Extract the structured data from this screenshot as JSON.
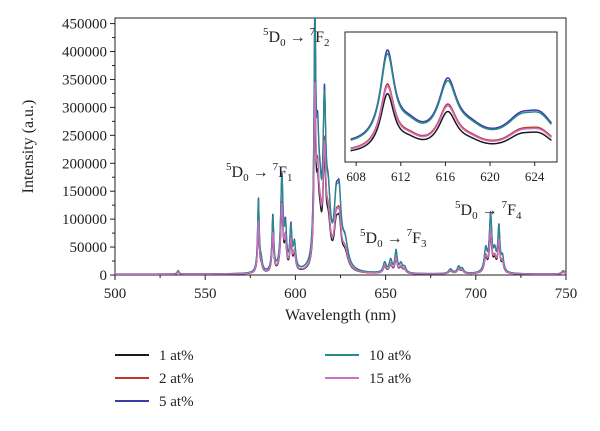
{
  "chart_data": {
    "type": "line",
    "xlabel": "Wavelength (nm)",
    "ylabel": "Intensity (a.u.)",
    "xlim": [
      500,
      750
    ],
    "ylim": [
      0,
      460000
    ],
    "xticks": [
      "500",
      "550",
      "600",
      "650",
      "700",
      "750"
    ],
    "yticks": [
      "0",
      "50000",
      "100000",
      "150000",
      "200000",
      "250000",
      "300000",
      "350000",
      "400000",
      "450000"
    ],
    "legend_position": "bottom",
    "annotations": [
      {
        "id": "f2",
        "sup1": "5",
        "base1": "D",
        "sub1": "0",
        "arrow": " → ",
        "sup2": "7",
        "base2": "F",
        "sub2": "2"
      },
      {
        "id": "f1",
        "sup1": "5",
        "base1": "D",
        "sub1": "0",
        "arrow": " → ",
        "sup2": "7",
        "base2": "F",
        "sub2": "1"
      },
      {
        "id": "f3",
        "sup1": "5",
        "base1": "D",
        "sub1": "0",
        "arrow": " → ",
        "sup2": "7",
        "base2": "F",
        "sub2": "3"
      },
      {
        "id": "f4",
        "sup1": "5",
        "base1": "D",
        "sub1": "0",
        "arrow": " → ",
        "sup2": "7",
        "base2": "F",
        "sub2": "4"
      }
    ],
    "series": [
      {
        "name": "1 at%",
        "color": "#1a1a1a",
        "scale": 0.64,
        "base": 1200
      },
      {
        "name": "2 at%",
        "color": "#c0392b",
        "scale": 0.72,
        "base": 1400
      },
      {
        "name": "5 at%",
        "color": "#3d3ba8",
        "scale": 1.0,
        "base": 1600
      },
      {
        "name": "10 at%",
        "color": "#2a8a8a",
        "scale": 0.97,
        "base": 1500
      },
      {
        "name": "15 at%",
        "color": "#cc6fc4",
        "scale": 0.7,
        "base": 1300
      }
    ],
    "peaks": [
      {
        "x": 535,
        "h": 6000,
        "w": 0.6
      },
      {
        "x": 579.5,
        "h": 130000,
        "w": 0.55
      },
      {
        "x": 581,
        "h": 18000,
        "w": 0.8
      },
      {
        "x": 587.5,
        "h": 100000,
        "w": 0.6
      },
      {
        "x": 592.5,
        "h": 168000,
        "w": 0.8
      },
      {
        "x": 594.5,
        "h": 70000,
        "w": 0.7
      },
      {
        "x": 597.5,
        "h": 75000,
        "w": 0.7
      },
      {
        "x": 599.5,
        "h": 45000,
        "w": 0.8
      },
      {
        "x": 610.8,
        "h": 420000,
        "w": 0.6
      },
      {
        "x": 612.3,
        "h": 170000,
        "w": 0.9
      },
      {
        "x": 613.6,
        "h": 85000,
        "w": 1.2
      },
      {
        "x": 616.1,
        "h": 265000,
        "w": 0.9
      },
      {
        "x": 618.2,
        "h": 110000,
        "w": 1.5
      },
      {
        "x": 622.6,
        "h": 98000,
        "w": 1.4
      },
      {
        "x": 624.3,
        "h": 102000,
        "w": 1.3
      },
      {
        "x": 627.5,
        "h": 45000,
        "w": 2.0
      },
      {
        "x": 649.5,
        "h": 18000,
        "w": 1.0
      },
      {
        "x": 652.8,
        "h": 22000,
        "w": 1.0
      },
      {
        "x": 655.8,
        "h": 38000,
        "w": 0.8
      },
      {
        "x": 658.5,
        "h": 15000,
        "w": 1.0
      },
      {
        "x": 660.5,
        "h": 10000,
        "w": 1.0
      },
      {
        "x": 686.0,
        "h": 8000,
        "w": 1.2
      },
      {
        "x": 690.5,
        "h": 12000,
        "w": 1.0
      },
      {
        "x": 692.5,
        "h": 8000,
        "w": 1.0
      },
      {
        "x": 705.5,
        "h": 40000,
        "w": 1.0
      },
      {
        "x": 708.2,
        "h": 100000,
        "w": 0.8
      },
      {
        "x": 710.5,
        "h": 32000,
        "w": 1.0
      },
      {
        "x": 712.8,
        "h": 78000,
        "w": 0.7
      },
      {
        "x": 714.8,
        "h": 25000,
        "w": 0.8
      },
      {
        "x": 748.5,
        "h": 6000,
        "w": 1.0
      }
    ],
    "inset": {
      "xlim": [
        607,
        626
      ],
      "xticks": [
        "608",
        "612",
        "616",
        "620",
        "624"
      ]
    }
  }
}
